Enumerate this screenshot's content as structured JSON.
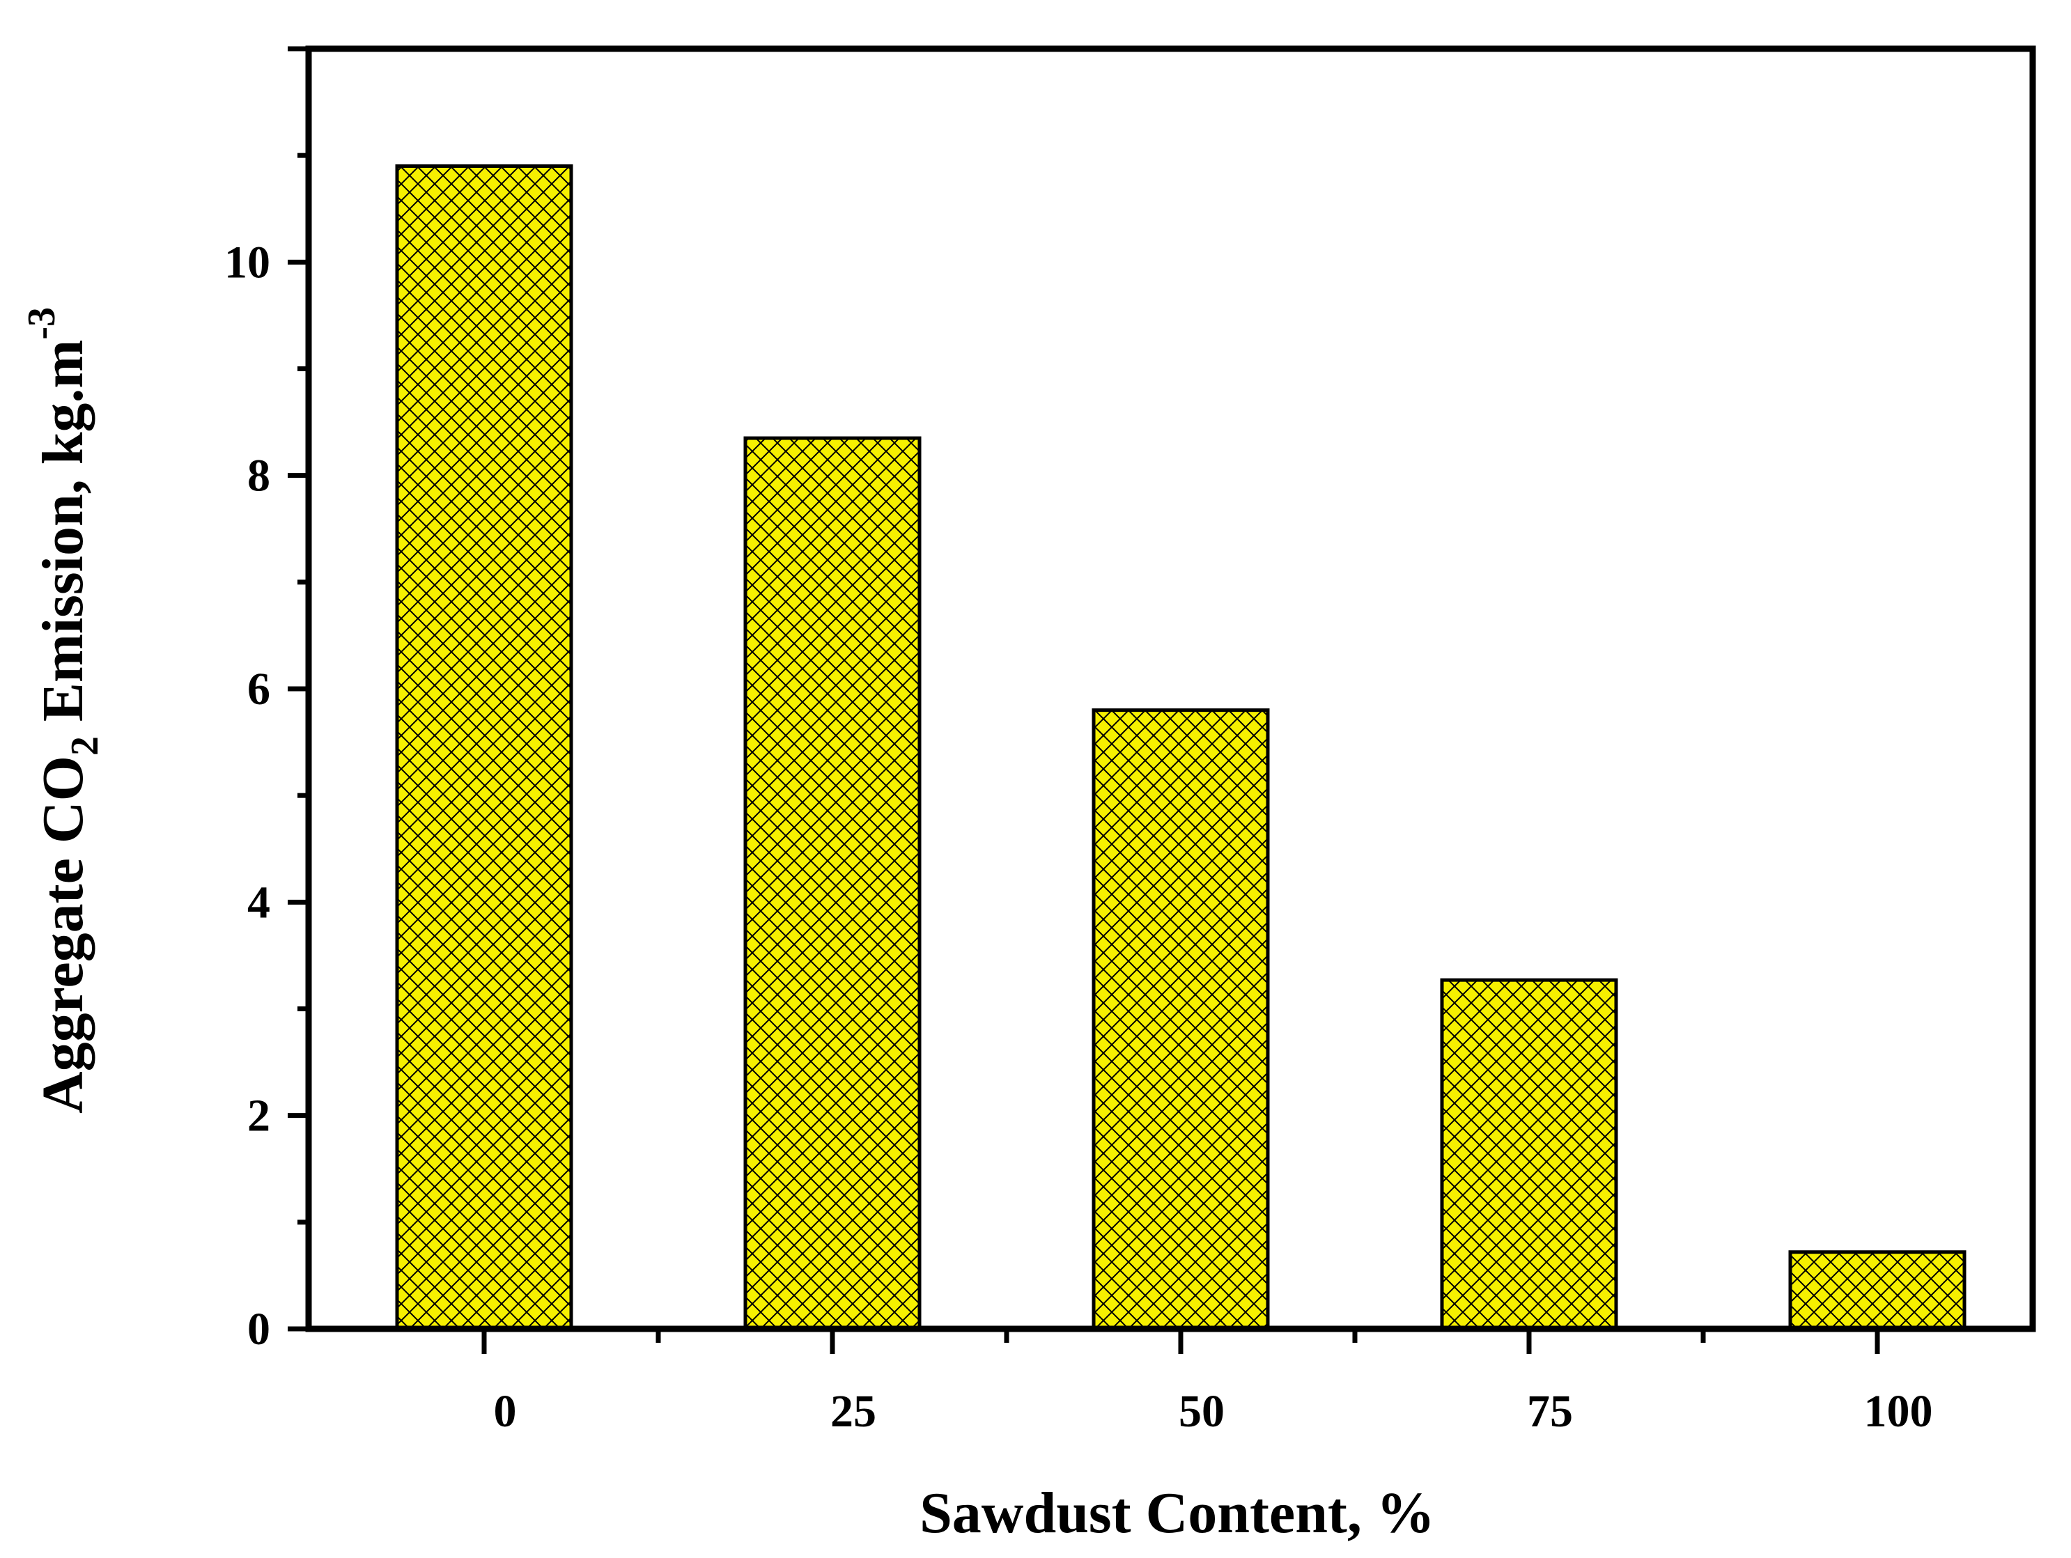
{
  "chart_data": {
    "type": "bar",
    "categories": [
      "0",
      "25",
      "50",
      "75",
      "100"
    ],
    "values": [
      10.9,
      8.35,
      5.8,
      3.27,
      0.72
    ],
    "xlabel": "Sawdust Content, %",
    "ylabel": {
      "prefix": "Aggregate CO",
      "subscript": "2",
      "middle": " Emission, kg.m",
      "superscript": "-3"
    },
    "yticks": [
      "0",
      "2",
      "4",
      "6",
      "8",
      "10"
    ],
    "ylim": [
      0,
      12
    ],
    "grid": false,
    "legend": "none",
    "bar_color": "#f6f000",
    "bar_pattern": "crosshatch",
    "frame_color": "#000000"
  }
}
